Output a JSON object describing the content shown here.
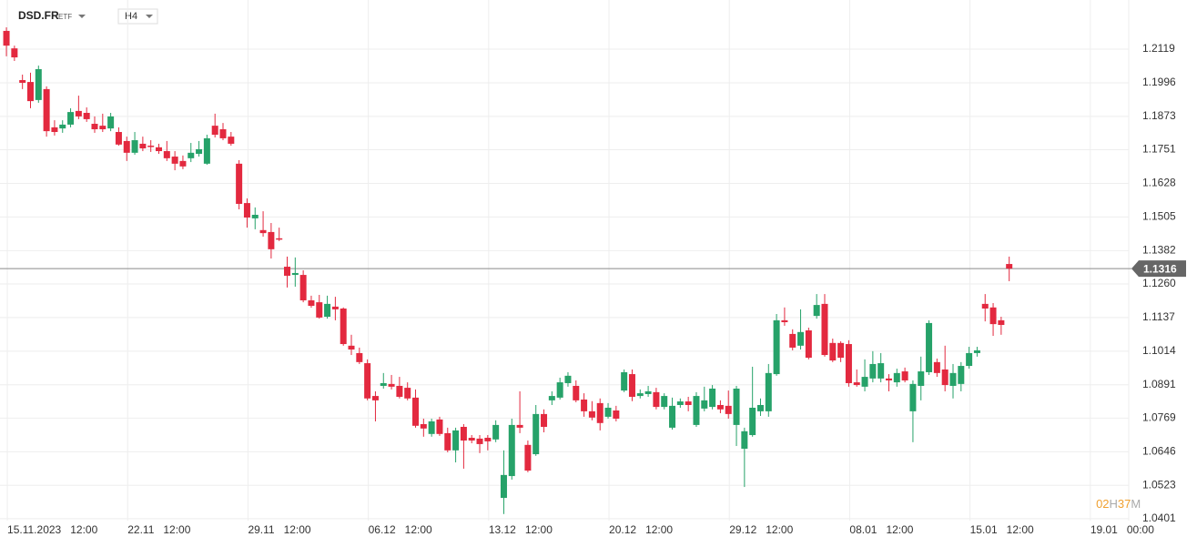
{
  "chart_data": {
    "type": "candlestick",
    "symbol": "DSD.FR",
    "symbol_type": "ETF",
    "timeframe": "H4",
    "up_color": "#26a269",
    "down_color": "#e3293f",
    "grid": true,
    "ylim": [
      1.0394,
      1.2299
    ],
    "xlim": [
      -0.8,
      139.9
    ],
    "yticks": [
      1.2119,
      1.1996,
      1.1873,
      1.1751,
      1.1628,
      1.1505,
      1.1382,
      {
        "value": 1.126,
        "label": "1.1260"
      },
      1.1137,
      1.1014,
      1.0891,
      1.0769,
      1.0646,
      1.0523,
      1.0401
    ],
    "xticks": [
      {
        "value": 0,
        "label": "15.11.2023   12:00"
      },
      {
        "value": 15,
        "label": "22.11   12:00"
      },
      {
        "value": 30,
        "label": "29.11   12:00"
      },
      {
        "value": 45,
        "label": "06.12   12:00"
      },
      {
        "value": 60,
        "label": "13.12   12:00"
      },
      {
        "value": 75,
        "label": "20.12   12:00"
      },
      {
        "value": 90,
        "label": "29.12   12:00"
      },
      {
        "value": 105,
        "label": "08.01   12:00"
      },
      {
        "value": 120,
        "label": "15.01   12:00"
      },
      {
        "value": 135,
        "label": "19.01   00:00"
      }
    ],
    "last_price": 1.1316,
    "countdown": [
      "02",
      "H",
      "37",
      "M"
    ],
    "open": [
      1.2186,
      1.2122,
      1.2006,
      1.1999,
      1.1933,
      1.1973,
      1.1833,
      1.1829,
      1.1843,
      1.1893,
      1.1886,
      1.1846,
      1.1839,
      1.1829,
      1.1816,
      1.1783,
      1.174,
      1.1773,
      1.1766,
      1.176,
      1.1746,
      1.1726,
      1.171,
      1.172,
      1.1736,
      1.17,
      1.1839,
      1.1826,
      1.1799,
      1.17,
      1.1556,
      1.15,
      1.1457,
      1.145,
      1.1427,
      1.1323,
      1.1293,
      1.1293,
      1.12,
      1.1193,
      1.114,
      1.1177,
      1.117,
      1.1034,
      1.1007,
      1.097,
      1.085,
      1.0887,
      1.0894,
      1.0887,
      1.088,
      1.0844,
      1.0747,
      1.0711,
      1.0764,
      1.0714,
      1.0651,
      1.0737,
      1.0697,
      1.0694,
      1.0697,
      1.0691,
      1.0477,
      1.0557,
      1.0744,
      1.0671,
      1.0637,
      1.0784,
      1.0834,
      1.0844,
      1.0897,
      1.0887,
      1.0837,
      1.0794,
      1.0824,
      1.0774,
      1.0797,
      1.087,
      1.093,
      1.085,
      1.0857,
      1.0864,
      1.081,
      1.0734,
      1.0817,
      1.083,
      1.0744,
      1.0804,
      1.081,
      1.0817,
      1.0814,
      1.0744,
      1.0657,
      1.0707,
      1.0794,
      1.0794,
      1.093,
      1.1127,
      1.1077,
      1.1034,
      1.109,
      1.1143,
      1.1187,
      1.1044,
      1.1044,
      1.104,
      1.09,
      1.0884,
      1.0914,
      1.0914,
      1.0914,
      1.09,
      1.094,
      1.0794,
      1.0887,
      1.0937,
      1.0974,
      1.0947,
      1.0887,
      1.0894,
      1.096,
      1.1007,
      1.1187,
      1.1174,
      1.1127,
      1.1333
    ],
    "high": [
      1.2199,
      1.2132,
      1.2026,
      1.2033,
      1.2059,
      1.1983,
      1.1859,
      1.1859,
      1.1903,
      1.1949,
      1.1906,
      1.1873,
      1.1883,
      1.1886,
      1.1833,
      1.1799,
      1.1816,
      1.1799,
      1.1786,
      1.1773,
      1.1783,
      1.1746,
      1.173,
      1.1776,
      1.1783,
      1.1806,
      1.1883,
      1.1849,
      1.1816,
      1.1713,
      1.1573,
      1.154,
      1.1526,
      1.1483,
      1.1466,
      1.136,
      1.1357,
      1.131,
      1.1217,
      1.122,
      1.1217,
      1.1213,
      1.1174,
      1.1074,
      1.1027,
      1.0984,
      1.0867,
      1.0934,
      1.0927,
      1.092,
      1.09,
      1.0874,
      1.0767,
      1.0767,
      1.0774,
      1.0734,
      1.0734,
      1.0747,
      1.0707,
      1.0707,
      1.0707,
      1.0761,
      1.0651,
      1.0767,
      1.0867,
      1.0687,
      1.0817,
      1.0801,
      1.0867,
      1.0917,
      1.0937,
      1.0907,
      1.086,
      1.0831,
      1.0841,
      1.0824,
      1.0814,
      1.0947,
      1.0947,
      1.0874,
      1.0887,
      1.088,
      1.086,
      1.0844,
      1.0841,
      1.0847,
      1.0864,
      1.0884,
      1.089,
      1.0834,
      1.087,
      1.0887,
      1.0734,
      1.0957,
      1.0841,
      1.0967,
      1.115,
      1.1174,
      1.1094,
      1.1167,
      1.11,
      1.1223,
      1.1223,
      1.106,
      1.105,
      1.1054,
      1.0947,
      1.0984,
      1.1014,
      1.1007,
      1.093,
      1.095,
      1.0954,
      1.0907,
      1.0994,
      1.1127,
      1.0987,
      1.1034,
      1.0967,
      1.0974,
      1.103,
      1.103,
      1.1223,
      1.119,
      1.114,
      1.136
    ],
    "low": [
      1.2093,
      1.2076,
      1.1973,
      1.1903,
      1.1923,
      1.1799,
      1.1803,
      1.1813,
      1.1833,
      1.1863,
      1.1853,
      1.1813,
      1.1816,
      1.1819,
      1.1766,
      1.171,
      1.1733,
      1.1746,
      1.1743,
      1.1736,
      1.171,
      1.1676,
      1.168,
      1.1706,
      1.1726,
      1.1696,
      1.1796,
      1.1786,
      1.1766,
      1.1533,
      1.1466,
      1.146,
      1.1433,
      1.1353,
      1.1417,
      1.1247,
      1.125,
      1.1193,
      1.1173,
      1.1133,
      1.1133,
      1.1127,
      1.1034,
      1.1,
      1.0967,
      1.0834,
      1.0757,
      1.0877,
      1.0874,
      1.0841,
      1.0834,
      1.0734,
      1.0701,
      1.0701,
      1.0704,
      1.0644,
      1.0607,
      1.0584,
      1.0677,
      1.0641,
      1.0651,
      1.0681,
      1.0418,
      1.0544,
      1.0714,
      1.0571,
      1.0631,
      1.0717,
      1.0817,
      1.0837,
      1.0884,
      1.0827,
      1.0774,
      1.0761,
      1.0724,
      1.0767,
      1.0757,
      1.0864,
      1.0831,
      1.0841,
      1.0847,
      1.0801,
      1.0801,
      1.0727,
      1.0807,
      1.0794,
      1.0737,
      1.0794,
      1.0801,
      1.0787,
      1.0767,
      1.0667,
      1.0517,
      1.0701,
      1.0777,
      1.0774,
      1.0924,
      1.1107,
      1.1017,
      1.102,
      1.0984,
      1.1133,
      1.0994,
      1.0974,
      1.0974,
      1.0884,
      1.0884,
      1.0867,
      1.09,
      1.09,
      1.0867,
      1.0884,
      1.09,
      1.0681,
      1.0834,
      1.0927,
      1.092,
      1.0867,
      1.0841,
      1.0867,
      1.095,
      1.0994,
      1.1123,
      1.107,
      1.1074,
      1.127
    ],
    "close": [
      1.2132,
      1.2089,
      1.1996,
      1.1929,
      1.2046,
      1.1819,
      1.1816,
      1.1843,
      1.1889,
      1.1873,
      1.1863,
      1.1826,
      1.1826,
      1.1873,
      1.177,
      1.174,
      1.1786,
      1.1756,
      1.1763,
      1.1746,
      1.172,
      1.17,
      1.169,
      1.174,
      1.1753,
      1.1793,
      1.1806,
      1.1793,
      1.1773,
      1.1553,
      1.1503,
      1.1513,
      1.1446,
      1.1387,
      1.1423,
      1.129,
      1.13,
      1.12,
      1.118,
      1.1137,
      1.1187,
      1.1167,
      1.104,
      1.102,
      1.0974,
      1.0841,
      1.0834,
      1.0897,
      1.0884,
      1.0847,
      1.0841,
      1.0741,
      1.0731,
      1.0757,
      1.0711,
      1.0651,
      1.0724,
      1.0687,
      1.0687,
      1.0674,
      1.0684,
      1.0744,
      1.0561,
      1.0744,
      1.0734,
      1.0577,
      1.0784,
      1.0737,
      1.085,
      1.09,
      1.0924,
      1.0834,
      1.0794,
      1.0771,
      1.0751,
      1.0807,
      1.0767,
      1.0937,
      1.0847,
      1.086,
      1.0867,
      1.081,
      1.085,
      1.0814,
      1.083,
      1.0817,
      1.085,
      1.0834,
      1.0877,
      1.0801,
      1.0784,
      1.0877,
      1.0721,
      1.0807,
      1.0817,
      1.0934,
      1.1127,
      1.112,
      1.1027,
      1.1084,
      1.099,
      1.1183,
      1.1,
      1.098,
      1.099,
      1.0897,
      1.089,
      1.092,
      1.0967,
      1.097,
      1.0907,
      1.0934,
      1.0907,
      1.0894,
      1.094,
      1.1117,
      1.0934,
      1.089,
      1.0934,
      1.096,
      1.1007,
      1.1017,
      1.117,
      1.1113,
      1.111,
      1.1316
    ]
  }
}
